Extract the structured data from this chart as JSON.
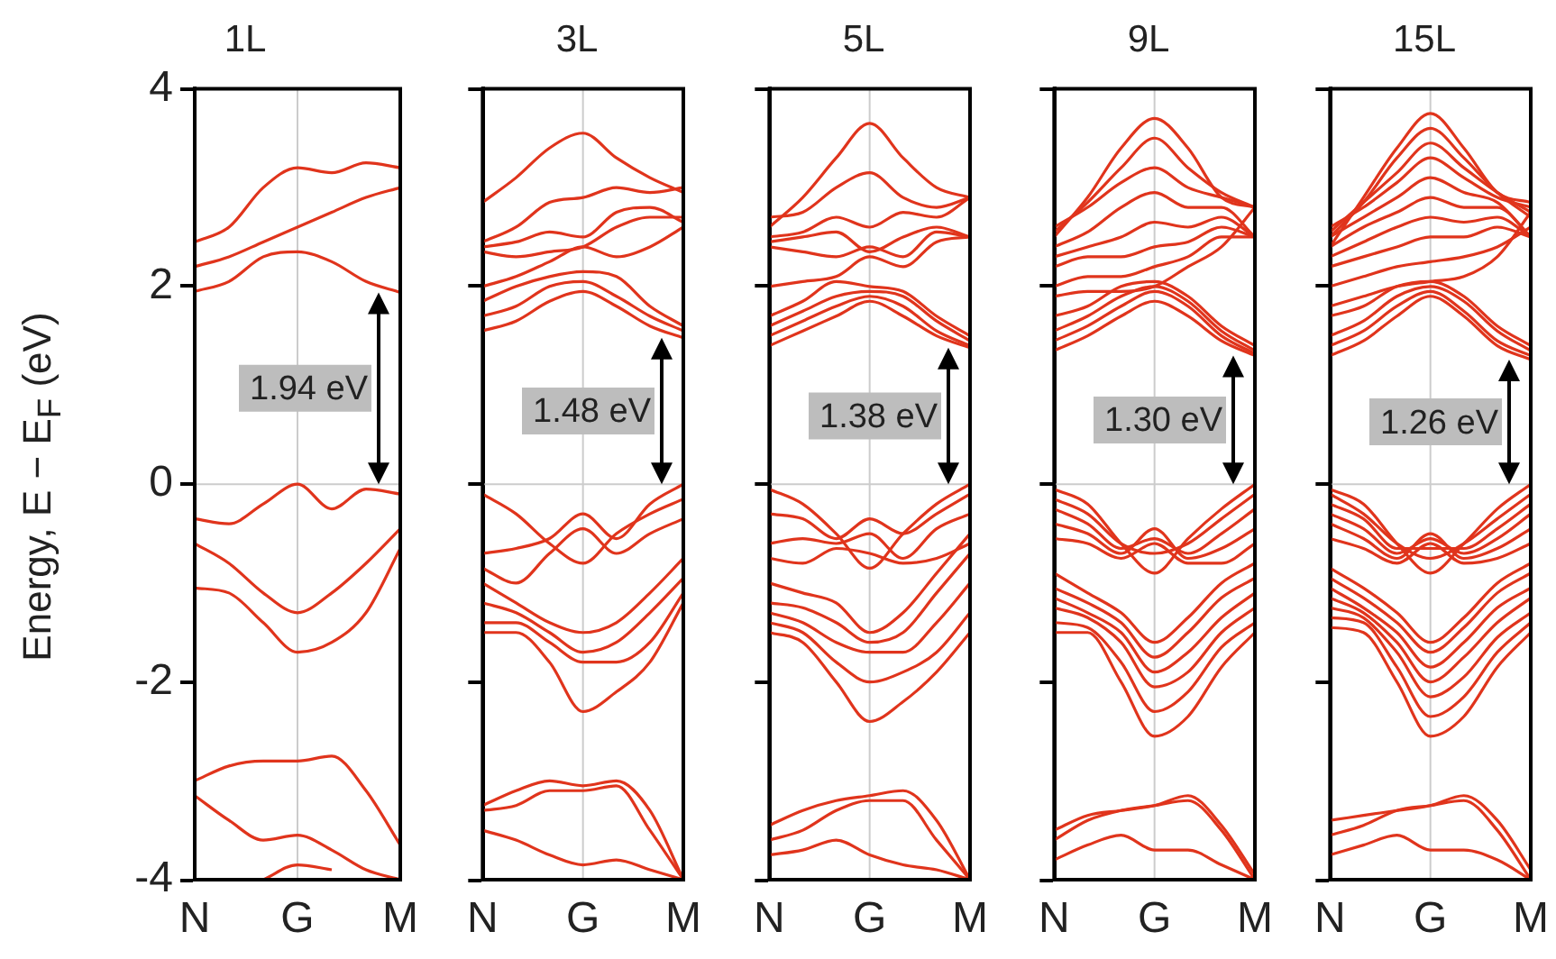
{
  "chart_data": [
    {
      "type": "line",
      "title": "1L",
      "ylabel": "Energy, E − E$_{F}$ (eV)",
      "color": "#e0341c",
      "categories": [
        "N",
        null,
        null,
        "G",
        null,
        null,
        "M"
      ],
      "ylim": [
        -4,
        4
      ],
      "yticks": [
        -4,
        -2,
        0,
        2,
        4
      ],
      "ref_lines": [
        {
          "axis": "x",
          "value": "G",
          "color": "#cccccc"
        },
        {
          "axis": "y",
          "value": 0,
          "color": "#cccccc"
        }
      ],
      "annotations": [
        "1.94 eV"
      ],
      "series": [
        {
          "values": [
            2.45,
            2.6,
            3.0,
            3.2,
            3.15,
            3.25,
            3.2
          ]
        },
        {
          "values": [
            2.2,
            2.3,
            2.45,
            2.6,
            2.75,
            2.9,
            3.0
          ]
        },
        {
          "values": [
            1.95,
            2.05,
            2.3,
            2.35,
            2.25,
            2.05,
            1.94
          ]
        },
        {
          "values": [
            -0.35,
            -0.4,
            -0.2,
            0,
            -0.25,
            -0.05,
            -0.1
          ]
        },
        {
          "values": [
            -0.6,
            -0.8,
            -1.1,
            -1.3,
            -1.1,
            -0.8,
            -0.45
          ]
        },
        {
          "values": [
            -1.05,
            -1.1,
            -1.4,
            -1.7,
            -1.6,
            -1.3,
            -0.65
          ]
        },
        {
          "values": [
            -3.0,
            -2.85,
            -2.8,
            -2.8,
            -2.75,
            -3.1,
            -3.65
          ]
        },
        {
          "values": [
            -3.15,
            -3.4,
            -3.6,
            -3.55,
            -3.7,
            -3.9,
            -4.0
          ]
        },
        {
          "values": [
            null,
            null,
            -4.0,
            -3.85,
            -3.9,
            null,
            null
          ]
        }
      ]
    },
    {
      "type": "line",
      "title": "3L",
      "color": "#e0341c",
      "categories": [
        "N",
        null,
        null,
        "G",
        null,
        null,
        "M"
      ],
      "ylim": [
        -4,
        4
      ],
      "yticks": [
        -4,
        -2,
        0,
        2,
        4
      ],
      "tick_labels": "x",
      "ref_lines": [
        {
          "axis": "x",
          "value": "G",
          "color": "#cccccc"
        },
        {
          "axis": "y",
          "value": 0,
          "color": "#cccccc"
        }
      ],
      "annotations": [
        "1.48 eV"
      ],
      "series": [
        {
          "values": [
            2.85,
            3.1,
            3.4,
            3.55,
            3.3,
            3.1,
            2.95
          ]
        },
        {
          "values": [
            2.45,
            2.6,
            2.85,
            2.9,
            3.0,
            2.95,
            3.0
          ]
        },
        {
          "values": [
            2.4,
            2.45,
            2.55,
            2.5,
            2.75,
            2.8,
            2.65
          ]
        },
        {
          "values": [
            2.35,
            2.3,
            2.35,
            2.4,
            2.6,
            2.7,
            2.7
          ]
        },
        {
          "values": [
            2.0,
            2.1,
            2.25,
            2.4,
            2.3,
            2.4,
            2.6
          ]
        },
        {
          "values": [
            1.85,
            2.0,
            2.1,
            2.15,
            2.1,
            1.8,
            1.6
          ]
        },
        {
          "values": [
            1.7,
            1.8,
            2.0,
            2.05,
            1.9,
            1.7,
            1.55
          ]
        },
        {
          "values": [
            1.55,
            1.65,
            1.85,
            1.95,
            1.8,
            1.6,
            1.48
          ]
        },
        {
          "values": [
            -0.1,
            -0.3,
            -0.6,
            -0.8,
            -0.5,
            -0.3,
            -0.15
          ]
        },
        {
          "values": [
            -0.7,
            -0.65,
            -0.55,
            -0.3,
            -0.55,
            -0.2,
            0
          ]
        },
        {
          "values": [
            -0.85,
            -1.0,
            -0.7,
            -0.45,
            -0.7,
            -0.5,
            -0.35
          ]
        },
        {
          "values": [
            -1.0,
            -1.2,
            -1.4,
            -1.5,
            -1.4,
            -1.1,
            -0.75
          ]
        },
        {
          "values": [
            -1.2,
            -1.3,
            -1.5,
            -1.7,
            -1.6,
            -1.3,
            -0.95
          ]
        },
        {
          "values": [
            -1.4,
            -1.4,
            -1.6,
            -1.8,
            -1.8,
            -1.6,
            -1.1
          ]
        },
        {
          "values": [
            -1.5,
            -1.5,
            -1.8,
            -2.3,
            -2.1,
            -1.8,
            -1.2
          ]
        },
        {
          "values": [
            -3.25,
            -3.1,
            -3.0,
            -3.05,
            -3.0,
            -3.3,
            -4.0
          ]
        },
        {
          "values": [
            -3.3,
            -3.25,
            -3.1,
            -3.1,
            -3.05,
            -3.5,
            -4.0
          ]
        },
        {
          "values": [
            -3.5,
            -3.6,
            -3.75,
            -3.85,
            -3.8,
            -3.9,
            -4.0
          ]
        }
      ]
    },
    {
      "type": "line",
      "title": "5L",
      "color": "#e0341c",
      "categories": [
        "N",
        null,
        null,
        "G",
        null,
        null,
        "M"
      ],
      "ylim": [
        -4,
        4
      ],
      "yticks": [
        -4,
        -2,
        0,
        2,
        4
      ],
      "tick_labels": "x",
      "ref_lines": [
        {
          "axis": "x",
          "value": "G",
          "color": "#cccccc"
        },
        {
          "axis": "y",
          "value": 0,
          "color": "#cccccc"
        }
      ],
      "annotations": [
        "1.38 eV"
      ],
      "series": [
        {
          "values": [
            2.6,
            2.9,
            3.3,
            3.65,
            3.3,
            3.0,
            2.9
          ]
        },
        {
          "values": [
            2.7,
            2.75,
            3.0,
            3.15,
            2.9,
            2.8,
            2.9
          ]
        },
        {
          "values": [
            2.5,
            2.55,
            2.7,
            2.6,
            2.75,
            2.7,
            2.9
          ]
        },
        {
          "values": [
            2.45,
            2.5,
            2.55,
            2.35,
            2.5,
            2.6,
            2.5
          ]
        },
        {
          "values": [
            2.4,
            2.35,
            2.3,
            2.4,
            2.3,
            2.55,
            2.5
          ]
        },
        {
          "values": [
            2.0,
            2.05,
            2.1,
            2.3,
            2.2,
            2.45,
            2.5
          ]
        },
        {
          "values": [
            1.7,
            1.85,
            2.05,
            2.0,
            1.95,
            1.7,
            1.5
          ]
        },
        {
          "values": [
            1.6,
            1.75,
            1.9,
            1.95,
            1.9,
            1.65,
            1.45
          ]
        },
        {
          "values": [
            1.5,
            1.65,
            1.8,
            1.9,
            1.8,
            1.55,
            1.4
          ]
        },
        {
          "values": [
            1.4,
            1.55,
            1.7,
            1.85,
            1.7,
            1.5,
            1.38
          ]
        },
        {
          "values": [
            -0.05,
            -0.2,
            -0.5,
            -0.85,
            -0.5,
            -0.2,
            0
          ]
        },
        {
          "values": [
            -0.3,
            -0.35,
            -0.55,
            -0.35,
            -0.5,
            -0.3,
            -0.1
          ]
        },
        {
          "values": [
            -0.6,
            -0.55,
            -0.6,
            -0.5,
            -0.75,
            -0.45,
            -0.3
          ]
        },
        {
          "values": [
            -0.75,
            -0.8,
            -0.65,
            -0.7,
            -0.8,
            -0.75,
            -0.6
          ]
        },
        {
          "values": [
            -1.0,
            -1.1,
            -1.2,
            -1.5,
            -1.3,
            -0.9,
            -0.5
          ]
        },
        {
          "values": [
            -1.2,
            -1.25,
            -1.4,
            -1.6,
            -1.5,
            -1.1,
            -0.7
          ]
        },
        {
          "values": [
            -1.3,
            -1.4,
            -1.6,
            -1.7,
            -1.7,
            -1.4,
            -1.0
          ]
        },
        {
          "values": [
            -1.4,
            -1.5,
            -1.8,
            -2.0,
            -1.9,
            -1.7,
            -1.3
          ]
        },
        {
          "values": [
            -1.5,
            -1.6,
            -2.0,
            -2.4,
            -2.2,
            -1.9,
            -1.5
          ]
        },
        {
          "values": [
            -3.45,
            -3.3,
            -3.2,
            -3.15,
            -3.1,
            -3.4,
            -4.0
          ]
        },
        {
          "values": [
            -3.6,
            -3.5,
            -3.3,
            -3.2,
            -3.2,
            -3.6,
            -4.0
          ]
        },
        {
          "values": [
            -3.75,
            -3.7,
            -3.6,
            -3.75,
            -3.85,
            -3.9,
            -4.0
          ]
        }
      ]
    },
    {
      "type": "line",
      "title": "9L",
      "color": "#e0341c",
      "categories": [
        "N",
        null,
        null,
        "G",
        null,
        null,
        "M"
      ],
      "ylim": [
        -4,
        4
      ],
      "yticks": [
        -4,
        -2,
        0,
        2,
        4
      ],
      "tick_labels": "x",
      "ref_lines": [
        {
          "axis": "x",
          "value": "G",
          "color": "#cccccc"
        },
        {
          "axis": "y",
          "value": 0,
          "color": "#cccccc"
        }
      ],
      "annotations": [
        "1.30 eV"
      ],
      "series": [
        {
          "values": [
            2.5,
            2.9,
            3.4,
            3.7,
            3.4,
            2.9,
            2.8
          ]
        },
        {
          "values": [
            2.55,
            2.85,
            3.2,
            3.5,
            3.2,
            2.95,
            2.8
          ]
        },
        {
          "values": [
            2.6,
            2.8,
            3.05,
            3.2,
            3.0,
            2.9,
            2.8
          ]
        },
        {
          "values": [
            2.4,
            2.55,
            2.8,
            2.95,
            2.8,
            2.8,
            2.5
          ]
        },
        {
          "values": [
            2.3,
            2.4,
            2.5,
            2.65,
            2.6,
            2.7,
            2.5
          ]
        },
        {
          "values": [
            2.2,
            2.3,
            2.3,
            2.4,
            2.45,
            2.6,
            2.5
          ]
        },
        {
          "values": [
            2.0,
            2.1,
            2.1,
            2.2,
            2.3,
            2.5,
            2.5
          ]
        },
        {
          "values": [
            1.9,
            1.95,
            1.95,
            2.0,
            2.2,
            2.4,
            2.8
          ]
        },
        {
          "values": [
            1.7,
            1.8,
            2.0,
            2.05,
            1.9,
            1.6,
            1.4
          ]
        },
        {
          "values": [
            1.55,
            1.7,
            1.9,
            2.0,
            1.85,
            1.55,
            1.35
          ]
        },
        {
          "values": [
            1.45,
            1.6,
            1.8,
            1.95,
            1.8,
            1.5,
            1.32
          ]
        },
        {
          "values": [
            1.35,
            1.5,
            1.7,
            1.85,
            1.7,
            1.45,
            1.3
          ]
        },
        {
          "values": [
            -0.05,
            -0.2,
            -0.6,
            -0.9,
            -0.55,
            -0.25,
            0
          ]
        },
        {
          "values": [
            -0.15,
            -0.3,
            -0.6,
            -0.7,
            -0.6,
            -0.35,
            -0.1
          ]
        },
        {
          "values": [
            -0.25,
            -0.4,
            -0.65,
            -0.55,
            -0.7,
            -0.5,
            -0.25
          ]
        },
        {
          "values": [
            -0.4,
            -0.5,
            -0.7,
            -0.45,
            -0.75,
            -0.65,
            -0.45
          ]
        },
        {
          "values": [
            -0.55,
            -0.6,
            -0.75,
            -0.6,
            -0.8,
            -0.8,
            -0.6
          ]
        },
        {
          "values": [
            -0.9,
            -1.1,
            -1.3,
            -1.6,
            -1.35,
            -1.0,
            -0.8
          ]
        },
        {
          "values": [
            -1.05,
            -1.2,
            -1.4,
            -1.75,
            -1.5,
            -1.15,
            -0.95
          ]
        },
        {
          "values": [
            -1.15,
            -1.3,
            -1.5,
            -1.9,
            -1.7,
            -1.35,
            -1.1
          ]
        },
        {
          "values": [
            -1.25,
            -1.35,
            -1.6,
            -2.05,
            -1.9,
            -1.5,
            -1.25
          ]
        },
        {
          "values": [
            -1.4,
            -1.45,
            -1.8,
            -2.3,
            -2.1,
            -1.65,
            -1.4
          ]
        },
        {
          "values": [
            -1.5,
            -1.5,
            -2.0,
            -2.55,
            -2.35,
            -1.85,
            -1.5
          ]
        },
        {
          "values": [
            -3.6,
            -3.4,
            -3.3,
            -3.25,
            -3.2,
            -3.5,
            -4.0
          ]
        },
        {
          "values": [
            -3.5,
            -3.35,
            -3.3,
            -3.25,
            -3.15,
            -3.45,
            -3.95
          ]
        },
        {
          "values": [
            -3.8,
            -3.65,
            -3.55,
            -3.7,
            -3.7,
            -3.85,
            -4.0
          ]
        }
      ]
    },
    {
      "type": "line",
      "title": "15L",
      "color": "#e0341c",
      "categories": [
        "N",
        null,
        null,
        "G",
        null,
        null,
        "M"
      ],
      "ylim": [
        -4,
        4
      ],
      "yticks": [
        -4,
        -2,
        0,
        2,
        4
      ],
      "tick_labels": "x",
      "ref_lines": [
        {
          "axis": "x",
          "value": "G",
          "color": "#cccccc"
        },
        {
          "axis": "y",
          "value": 0,
          "color": "#cccccc"
        }
      ],
      "annotations": [
        "1.26 eV"
      ],
      "series": [
        {
          "values": [
            2.4,
            2.9,
            3.4,
            3.75,
            3.4,
            2.95,
            2.85
          ]
        },
        {
          "values": [
            2.5,
            2.85,
            3.3,
            3.6,
            3.3,
            2.95,
            2.7
          ]
        },
        {
          "values": [
            2.55,
            2.85,
            3.15,
            3.45,
            3.2,
            2.95,
            2.75
          ]
        },
        {
          "values": [
            2.6,
            2.8,
            3.05,
            3.3,
            3.1,
            2.9,
            2.8
          ]
        },
        {
          "values": [
            2.5,
            2.7,
            2.9,
            3.1,
            2.95,
            2.85,
            2.5
          ]
        },
        {
          "values": [
            2.4,
            2.6,
            2.75,
            2.9,
            2.8,
            2.8,
            2.5
          ]
        },
        {
          "values": [
            2.3,
            2.45,
            2.6,
            2.7,
            2.65,
            2.7,
            2.5
          ]
        },
        {
          "values": [
            2.2,
            2.3,
            2.4,
            2.5,
            2.5,
            2.6,
            2.5
          ]
        },
        {
          "values": [
            2.0,
            2.1,
            2.2,
            2.25,
            2.3,
            2.4,
            2.6
          ]
        },
        {
          "values": [
            1.8,
            1.9,
            2.0,
            2.05,
            2.1,
            2.3,
            2.75
          ]
        },
        {
          "values": [
            1.7,
            1.8,
            2.0,
            2.05,
            1.9,
            1.6,
            1.4
          ]
        },
        {
          "values": [
            1.5,
            1.65,
            1.9,
            2.0,
            1.85,
            1.55,
            1.35
          ]
        },
        {
          "values": [
            1.4,
            1.55,
            1.8,
            1.95,
            1.75,
            1.45,
            1.3
          ]
        },
        {
          "values": [
            1.3,
            1.45,
            1.7,
            1.9,
            1.7,
            1.4,
            1.26
          ]
        },
        {
          "values": [
            -0.05,
            -0.2,
            -0.6,
            -0.9,
            -0.6,
            -0.25,
            0
          ]
        },
        {
          "values": [
            -0.1,
            -0.3,
            -0.6,
            -0.75,
            -0.6,
            -0.35,
            -0.1
          ]
        },
        {
          "values": [
            -0.2,
            -0.35,
            -0.65,
            -0.65,
            -0.65,
            -0.45,
            -0.2
          ]
        },
        {
          "values": [
            -0.3,
            -0.45,
            -0.7,
            -0.55,
            -0.7,
            -0.55,
            -0.3
          ]
        },
        {
          "values": [
            -0.4,
            -0.55,
            -0.75,
            -0.5,
            -0.75,
            -0.65,
            -0.45
          ]
        },
        {
          "values": [
            -0.55,
            -0.65,
            -0.8,
            -0.6,
            -0.8,
            -0.75,
            -0.6
          ]
        },
        {
          "values": [
            -0.85,
            -1.05,
            -1.3,
            -1.6,
            -1.35,
            -1.0,
            -0.8
          ]
        },
        {
          "values": [
            -0.95,
            -1.15,
            -1.4,
            -1.7,
            -1.45,
            -1.1,
            -0.9
          ]
        },
        {
          "values": [
            -1.05,
            -1.25,
            -1.5,
            -1.85,
            -1.6,
            -1.25,
            -1.05
          ]
        },
        {
          "values": [
            -1.15,
            -1.3,
            -1.6,
            -2.0,
            -1.75,
            -1.4,
            -1.15
          ]
        },
        {
          "values": [
            -1.25,
            -1.35,
            -1.7,
            -2.15,
            -1.95,
            -1.55,
            -1.3
          ]
        },
        {
          "values": [
            -1.35,
            -1.4,
            -1.85,
            -2.35,
            -2.15,
            -1.7,
            -1.4
          ]
        },
        {
          "values": [
            -1.45,
            -1.5,
            -2.0,
            -2.55,
            -2.35,
            -1.85,
            -1.5
          ]
        },
        {
          "values": [
            -3.55,
            -3.45,
            -3.3,
            -3.25,
            -3.2,
            -3.5,
            -4.0
          ]
        },
        {
          "values": [
            -3.4,
            -3.35,
            -3.3,
            -3.25,
            -3.15,
            -3.4,
            -3.9
          ]
        },
        {
          "values": [
            -3.75,
            -3.65,
            -3.55,
            -3.7,
            -3.7,
            -3.8,
            -4.0
          ]
        }
      ]
    }
  ]
}
